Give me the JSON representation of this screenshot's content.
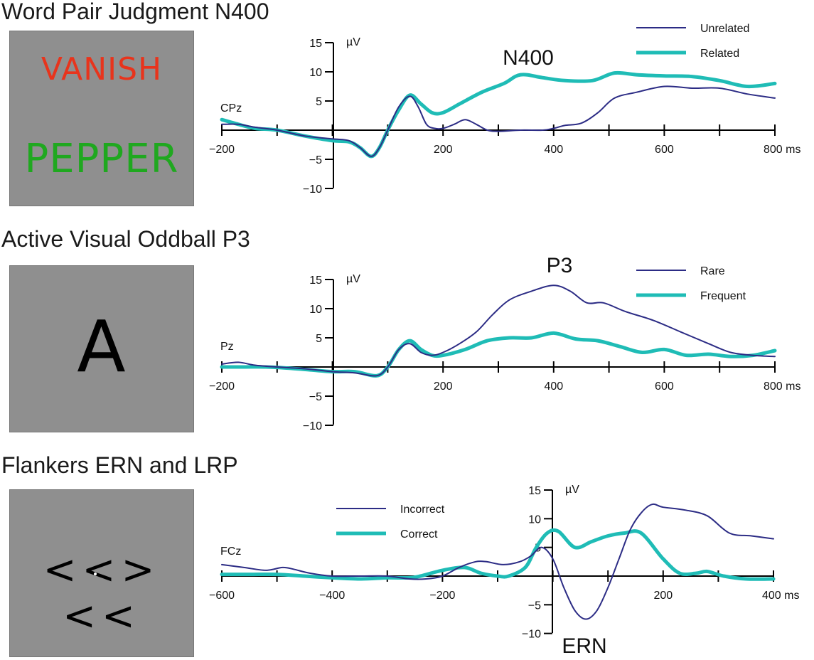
{
  "panels": [
    {
      "title": "Word Pair Judgment N400",
      "stimulus": {
        "words": [
          {
            "text": "VANISH",
            "color": "#e8341c"
          },
          {
            "text": "PEPPER",
            "color": "#1fa81f"
          }
        ]
      }
    },
    {
      "title": "Active Visual Oddball P3",
      "stimulus": {
        "words": [
          {
            "text": "A",
            "color": "#000000"
          }
        ]
      }
    },
    {
      "title": "Flankers ERN and LRP",
      "stimulus": {
        "words": [
          {
            "text": "<<><<",
            "color": "#000000"
          }
        ]
      }
    }
  ],
  "colors": {
    "thin_series": "#2c2c85",
    "thick_series": "#1fbcb6",
    "stimulus_bg": "#8f8f8f"
  },
  "chart_data": [
    {
      "type": "line",
      "title": "",
      "electrode": "CPz",
      "component_label": "N400",
      "xlabel": "",
      "ylabel": "µV",
      "x_unit": "ms",
      "xlim": [
        -200,
        800
      ],
      "ylim": [
        -10,
        15
      ],
      "x_ticks": [
        -200,
        -100,
        0,
        100,
        200,
        300,
        400,
        500,
        600,
        700,
        800
      ],
      "x_tick_labels": [
        {
          "x": -200,
          "label": "−200"
        },
        {
          "x": 200,
          "label": "200"
        },
        {
          "x": 400,
          "label": "400"
        },
        {
          "x": 600,
          "label": "600"
        },
        {
          "x": 800,
          "label": "800 ms"
        }
      ],
      "y_ticks": [
        {
          "y": 15,
          "label": "15"
        },
        {
          "y": 10,
          "label": "10"
        },
        {
          "y": 5,
          "label": "5"
        },
        {
          "y": -5,
          "label": "−5"
        },
        {
          "y": -10,
          "label": "−10"
        }
      ],
      "legend_position": "top-right",
      "series": [
        {
          "name": "Unrelated",
          "style": "thin",
          "points": [
            [
              -200,
              1
            ],
            [
              -170,
              1
            ],
            [
              -140,
              0.5
            ],
            [
              -100,
              0
            ],
            [
              -50,
              -1
            ],
            [
              0,
              -1.5
            ],
            [
              30,
              -1.8
            ],
            [
              50,
              -3
            ],
            [
              70,
              -4.5
            ],
            [
              85,
              -3
            ],
            [
              100,
              0
            ],
            [
              120,
              4
            ],
            [
              140,
              5.8
            ],
            [
              155,
              4
            ],
            [
              170,
              1
            ],
            [
              185,
              0.3
            ],
            [
              200,
              0.3
            ],
            [
              220,
              1
            ],
            [
              240,
              1.8
            ],
            [
              260,
              1
            ],
            [
              280,
              0
            ],
            [
              300,
              -0.2
            ],
            [
              340,
              0
            ],
            [
              380,
              0
            ],
            [
              400,
              0.3
            ],
            [
              420,
              0.8
            ],
            [
              450,
              1.2
            ],
            [
              480,
              3
            ],
            [
              510,
              5.5
            ],
            [
              550,
              6.5
            ],
            [
              600,
              7.5
            ],
            [
              650,
              7.2
            ],
            [
              700,
              7.2
            ],
            [
              750,
              6.2
            ],
            [
              800,
              5.5
            ]
          ]
        },
        {
          "name": "Related",
          "style": "thick",
          "points": [
            [
              -200,
              1.8
            ],
            [
              -170,
              1
            ],
            [
              -140,
              0.3
            ],
            [
              -100,
              0
            ],
            [
              -50,
              -1
            ],
            [
              0,
              -1.8
            ],
            [
              30,
              -2
            ],
            [
              50,
              -3
            ],
            [
              70,
              -4.5
            ],
            [
              85,
              -3
            ],
            [
              100,
              0
            ],
            [
              120,
              3.5
            ],
            [
              140,
              6
            ],
            [
              160,
              4.5
            ],
            [
              180,
              3
            ],
            [
              200,
              3
            ],
            [
              230,
              4.5
            ],
            [
              270,
              6.5
            ],
            [
              310,
              8
            ],
            [
              340,
              9.5
            ],
            [
              380,
              9
            ],
            [
              420,
              8.5
            ],
            [
              470,
              8.5
            ],
            [
              510,
              9.8
            ],
            [
              550,
              9.5
            ],
            [
              600,
              9.3
            ],
            [
              650,
              9.2
            ],
            [
              700,
              8.5
            ],
            [
              750,
              7.5
            ],
            [
              800,
              8
            ]
          ]
        }
      ]
    },
    {
      "type": "line",
      "title": "",
      "electrode": "Pz",
      "component_label": "P3",
      "xlabel": "",
      "ylabel": "µV",
      "x_unit": "ms",
      "xlim": [
        -200,
        800
      ],
      "ylim": [
        -10,
        15
      ],
      "x_ticks": [
        -200,
        -100,
        0,
        100,
        200,
        300,
        400,
        500,
        600,
        700,
        800
      ],
      "x_tick_labels": [
        {
          "x": -200,
          "label": "−200"
        },
        {
          "x": 200,
          "label": "200"
        },
        {
          "x": 400,
          "label": "400"
        },
        {
          "x": 600,
          "label": "600"
        },
        {
          "x": 800,
          "label": "800 ms"
        }
      ],
      "y_ticks": [
        {
          "y": 15,
          "label": "15"
        },
        {
          "y": 10,
          "label": "10"
        },
        {
          "y": 5,
          "label": "5"
        },
        {
          "y": -5,
          "label": "−5"
        },
        {
          "y": -10,
          "label": "−10"
        }
      ],
      "legend_position": "top-right",
      "series": [
        {
          "name": "Rare",
          "style": "thin",
          "points": [
            [
              -200,
              0.5
            ],
            [
              -170,
              0.8
            ],
            [
              -140,
              0.3
            ],
            [
              -100,
              0
            ],
            [
              -50,
              -0.3
            ],
            [
              0,
              -0.8
            ],
            [
              40,
              -1
            ],
            [
              80,
              -1.5
            ],
            [
              100,
              0
            ],
            [
              120,
              3
            ],
            [
              140,
              4
            ],
            [
              160,
              2.5
            ],
            [
              180,
              2
            ],
            [
              200,
              2.5
            ],
            [
              230,
              4
            ],
            [
              260,
              6
            ],
            [
              290,
              9
            ],
            [
              320,
              11.5
            ],
            [
              360,
              13
            ],
            [
              400,
              14
            ],
            [
              430,
              13
            ],
            [
              460,
              11
            ],
            [
              490,
              11
            ],
            [
              530,
              9.5
            ],
            [
              580,
              8
            ],
            [
              630,
              6
            ],
            [
              680,
              4
            ],
            [
              720,
              2.5
            ],
            [
              760,
              2
            ],
            [
              800,
              1.8
            ]
          ]
        },
        {
          "name": "Frequent",
          "style": "thick",
          "points": [
            [
              -200,
              0
            ],
            [
              -160,
              0
            ],
            [
              -120,
              0
            ],
            [
              -80,
              -0.2
            ],
            [
              -40,
              -0.5
            ],
            [
              0,
              -0.8
            ],
            [
              40,
              -0.8
            ],
            [
              80,
              -1.5
            ],
            [
              100,
              0
            ],
            [
              120,
              3
            ],
            [
              140,
              4.5
            ],
            [
              160,
              3
            ],
            [
              180,
              2
            ],
            [
              200,
              2
            ],
            [
              240,
              3
            ],
            [
              280,
              4.5
            ],
            [
              320,
              5
            ],
            [
              360,
              5
            ],
            [
              400,
              5.8
            ],
            [
              440,
              4.8
            ],
            [
              480,
              4.5
            ],
            [
              520,
              3.5
            ],
            [
              560,
              2.5
            ],
            [
              600,
              3
            ],
            [
              640,
              2
            ],
            [
              680,
              2.2
            ],
            [
              720,
              1.8
            ],
            [
              760,
              2
            ],
            [
              800,
              2.8
            ]
          ]
        }
      ]
    },
    {
      "type": "line",
      "title": "",
      "electrode": "FCz",
      "component_label": "ERN",
      "xlabel": "",
      "ylabel": "µV",
      "x_unit": "ms",
      "xlim": [
        -600,
        400
      ],
      "ylim": [
        -10,
        15
      ],
      "x_ticks": [
        -600,
        -500,
        -400,
        -300,
        -200,
        -100,
        0,
        100,
        200,
        300,
        400
      ],
      "x_tick_labels": [
        {
          "x": -600,
          "label": "−600"
        },
        {
          "x": -400,
          "label": "−400"
        },
        {
          "x": -200,
          "label": "−200"
        },
        {
          "x": 200,
          "label": "200"
        },
        {
          "x": 400,
          "label": "400 ms"
        }
      ],
      "y_ticks": [
        {
          "y": 15,
          "label": "15"
        },
        {
          "y": 10,
          "label": "10"
        },
        {
          "y": 5,
          "label": "5"
        },
        {
          "y": -5,
          "label": "−5"
        },
        {
          "y": -10,
          "label": "−10"
        }
      ],
      "legend_position": "top-left",
      "series": [
        {
          "name": "Incorrect",
          "style": "thin",
          "points": [
            [
              -600,
              2
            ],
            [
              -560,
              1.5
            ],
            [
              -520,
              1
            ],
            [
              -490,
              1.5
            ],
            [
              -470,
              1.2
            ],
            [
              -440,
              0.5
            ],
            [
              -400,
              0
            ],
            [
              -350,
              0
            ],
            [
              -300,
              0
            ],
            [
              -260,
              -0.5
            ],
            [
              -230,
              -0.5
            ],
            [
              -200,
              0
            ],
            [
              -170,
              1.5
            ],
            [
              -140,
              2.5
            ],
            [
              -120,
              2.5
            ],
            [
              -90,
              2
            ],
            [
              -60,
              2.5
            ],
            [
              -40,
              3.5
            ],
            [
              -20,
              5
            ],
            [
              0,
              3
            ],
            [
              20,
              -2
            ],
            [
              40,
              -6
            ],
            [
              60,
              -7.5
            ],
            [
              80,
              -6
            ],
            [
              100,
              -2
            ],
            [
              120,
              3
            ],
            [
              140,
              8
            ],
            [
              160,
              11
            ],
            [
              180,
              12.5
            ],
            [
              200,
              12
            ],
            [
              240,
              11.5
            ],
            [
              280,
              10.5
            ],
            [
              320,
              7.5
            ],
            [
              360,
              7
            ],
            [
              400,
              6.5
            ]
          ]
        },
        {
          "name": "Correct",
          "style": "thick",
          "points": [
            [
              -600,
              0.3
            ],
            [
              -550,
              0.3
            ],
            [
              -500,
              0.3
            ],
            [
              -450,
              0
            ],
            [
              -400,
              -0.3
            ],
            [
              -350,
              -0.5
            ],
            [
              -300,
              -0.3
            ],
            [
              -260,
              -0.3
            ],
            [
              -240,
              0
            ],
            [
              -200,
              1
            ],
            [
              -160,
              1.5
            ],
            [
              -130,
              0.5
            ],
            [
              -100,
              0
            ],
            [
              -80,
              0
            ],
            [
              -50,
              1.5
            ],
            [
              -30,
              5
            ],
            [
              -10,
              7.5
            ],
            [
              10,
              7.8
            ],
            [
              40,
              5
            ],
            [
              70,
              6
            ],
            [
              100,
              7
            ],
            [
              130,
              7.5
            ],
            [
              160,
              7.5
            ],
            [
              200,
              3
            ],
            [
              230,
              0.5
            ],
            [
              260,
              0.5
            ],
            [
              280,
              0.8
            ],
            [
              310,
              0
            ],
            [
              350,
              -0.5
            ],
            [
              400,
              -0.5
            ]
          ]
        }
      ]
    }
  ]
}
